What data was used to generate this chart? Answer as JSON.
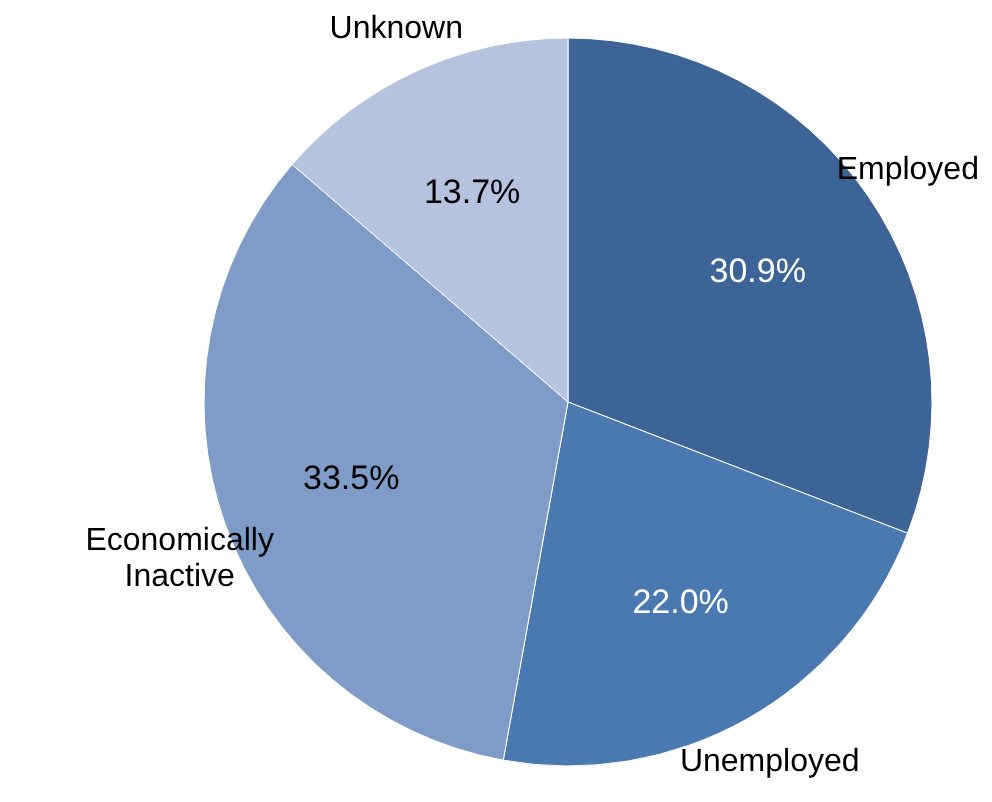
{
  "chart_data": {
    "type": "pie",
    "categories": [
      "Employed",
      "Unemployed",
      "Economically Inactive",
      "Unknown"
    ],
    "values": [
      30.9,
      22.0,
      33.5,
      13.7
    ],
    "value_labels": [
      "30.9%",
      "22.0%",
      "33.5%",
      "13.7%"
    ],
    "colors": [
      "#3d6496",
      "#4a78b0",
      "#7f9cc8",
      "#b5c3df"
    ]
  }
}
